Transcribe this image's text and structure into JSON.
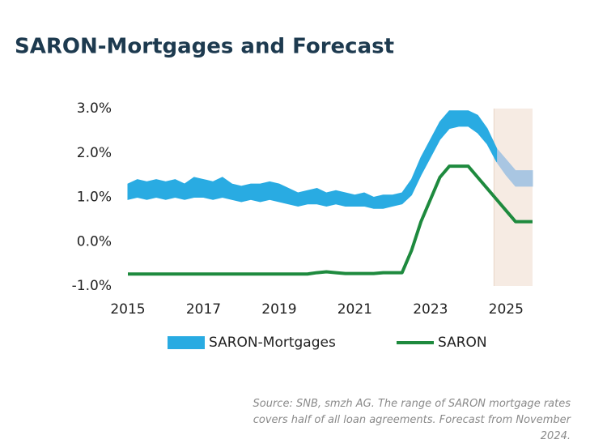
{
  "chart_data": {
    "type": "line",
    "title": "SARON-Mortgages and Forecast",
    "x": [
      2015,
      2015.25,
      2015.5,
      2015.75,
      2016,
      2016.25,
      2016.5,
      2016.75,
      2017,
      2017.25,
      2017.5,
      2017.75,
      2018,
      2018.25,
      2018.5,
      2018.75,
      2019,
      2019.25,
      2019.5,
      2019.75,
      2020,
      2020.25,
      2020.5,
      2020.75,
      2021,
      2021.25,
      2021.5,
      2021.75,
      2022,
      2022.25,
      2022.5,
      2022.75,
      2023,
      2023.25,
      2023.5,
      2023.75,
      2024,
      2024.25,
      2024.5,
      2024.75,
      2025,
      2025.25,
      2025.5,
      2025.7
    ],
    "xlim": [
      2015,
      2025.7
    ],
    "xticks": [
      2015,
      2017,
      2019,
      2021,
      2023,
      2025
    ],
    "ylim": [
      -1,
      3
    ],
    "yticks": [
      {
        "value": -1,
        "label": "-1.0%"
      },
      {
        "value": 0,
        "label": "0.0%"
      },
      {
        "value": 1,
        "label": "1.0%"
      },
      {
        "value": 2,
        "label": "2.0%"
      },
      {
        "value": 3,
        "label": "3.0%"
      }
    ],
    "series": [
      {
        "name": "SARON-Mortgages",
        "color": "#29abe2",
        "high": [
          1.3,
          1.4,
          1.35,
          1.4,
          1.35,
          1.4,
          1.3,
          1.45,
          1.4,
          1.35,
          1.45,
          1.3,
          1.25,
          1.3,
          1.3,
          1.35,
          1.3,
          1.2,
          1.1,
          1.15,
          1.2,
          1.1,
          1.15,
          1.1,
          1.05,
          1.1,
          1.0,
          1.05,
          1.05,
          1.1,
          1.4,
          1.9,
          2.3,
          2.7,
          2.95,
          2.95,
          2.95,
          2.85,
          2.55,
          2.1,
          null,
          null,
          null,
          null
        ],
        "low": [
          0.95,
          1.0,
          0.95,
          1.0,
          0.95,
          1.0,
          0.95,
          1.0,
          1.0,
          0.95,
          1.0,
          0.95,
          0.9,
          0.95,
          0.9,
          0.95,
          0.9,
          0.85,
          0.8,
          0.85,
          0.85,
          0.8,
          0.85,
          0.8,
          0.8,
          0.8,
          0.75,
          0.75,
          0.8,
          0.85,
          1.05,
          1.5,
          1.9,
          2.3,
          2.55,
          2.6,
          2.6,
          2.45,
          2.2,
          1.8,
          null,
          null,
          null,
          null
        ]
      },
      {
        "name": "SARON",
        "color": "#1e8a3e",
        "values": [
          -0.73,
          -0.73,
          -0.73,
          -0.73,
          -0.73,
          -0.73,
          -0.73,
          -0.73,
          -0.73,
          -0.73,
          -0.73,
          -0.73,
          -0.73,
          -0.73,
          -0.73,
          -0.73,
          -0.73,
          -0.73,
          -0.73,
          -0.73,
          -0.7,
          -0.68,
          -0.7,
          -0.72,
          -0.72,
          -0.72,
          -0.72,
          -0.7,
          -0.7,
          -0.7,
          -0.2,
          0.45,
          0.95,
          1.45,
          1.7,
          1.7,
          1.7,
          1.45,
          1.2,
          0.95,
          0.7,
          0.45,
          0.45,
          0.45
        ]
      }
    ],
    "forecast": {
      "color": "#a9c6e2",
      "high": [
        null,
        null,
        null,
        null,
        null,
        null,
        null,
        null,
        null,
        null,
        null,
        null,
        null,
        null,
        null,
        null,
        null,
        null,
        null,
        null,
        null,
        null,
        null,
        null,
        null,
        null,
        null,
        null,
        null,
        null,
        null,
        null,
        null,
        null,
        null,
        null,
        null,
        null,
        null,
        2.1,
        1.85,
        1.6,
        1.6,
        1.6
      ],
      "low": [
        null,
        null,
        null,
        null,
        null,
        null,
        null,
        null,
        null,
        null,
        null,
        null,
        null,
        null,
        null,
        null,
        null,
        null,
        null,
        null,
        null,
        null,
        null,
        null,
        null,
        null,
        null,
        null,
        null,
        null,
        null,
        null,
        null,
        null,
        null,
        null,
        null,
        null,
        null,
        1.8,
        1.5,
        1.25,
        1.25,
        1.25
      ],
      "shade": [
        2024.68,
        2025.7
      ],
      "shade_color": "#f6ebe3"
    },
    "source": "Source: SNB, smzh AG. The range of SARON mortgage rates covers half of all loan agreements. Forecast from November 2024."
  }
}
